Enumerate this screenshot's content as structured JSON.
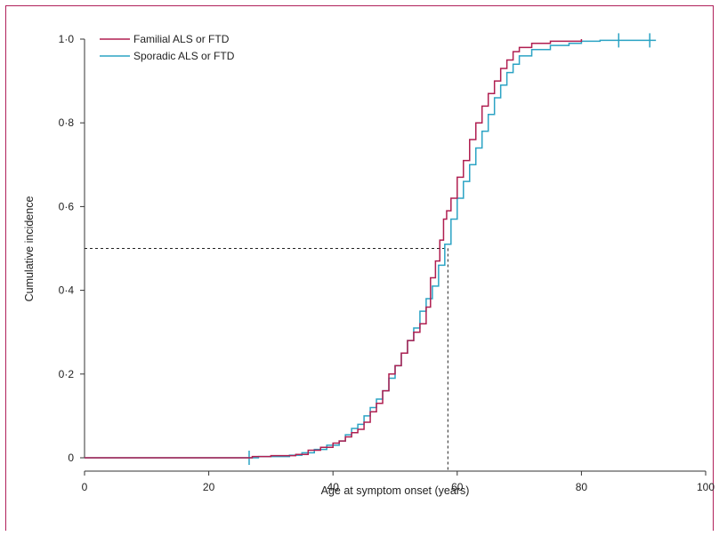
{
  "chart_data": {
    "type": "line",
    "xlabel": "Age at symptom onset (years)",
    "ylabel": "Cumulative incidence",
    "xlim": [
      0,
      100
    ],
    "ylim": [
      0,
      1.0
    ],
    "x_ticks": [
      0,
      20,
      40,
      60,
      80,
      100
    ],
    "x_tick_labels": [
      "0",
      "20",
      "40",
      "60",
      "80",
      "100"
    ],
    "y_ticks": [
      0,
      0.2,
      0.4,
      0.6,
      0.8,
      1.0
    ],
    "y_tick_labels": [
      "0",
      "0·2",
      "0·4",
      "0·6",
      "0·8",
      "1·0"
    ],
    "legend_position": "top-left",
    "grid": false,
    "reference_lines": {
      "median_age": 58.5,
      "median_incidence": 0.5
    },
    "series": [
      {
        "name": "Familial ALS or FTD",
        "color": "#b01e50",
        "points": [
          [
            0,
            0
          ],
          [
            27,
            0.003
          ],
          [
            30,
            0.005
          ],
          [
            34,
            0.008
          ],
          [
            36,
            0.018
          ],
          [
            38,
            0.025
          ],
          [
            40,
            0.035
          ],
          [
            41,
            0.04
          ],
          [
            42,
            0.05
          ],
          [
            43,
            0.06
          ],
          [
            44,
            0.068
          ],
          [
            45,
            0.085
          ],
          [
            46,
            0.11
          ],
          [
            47,
            0.13
          ],
          [
            48,
            0.16
          ],
          [
            49,
            0.2
          ],
          [
            50,
            0.22
          ],
          [
            51,
            0.25
          ],
          [
            52,
            0.28
          ],
          [
            53,
            0.3
          ],
          [
            54,
            0.32
          ],
          [
            55,
            0.36
          ],
          [
            55.7,
            0.43
          ],
          [
            56.5,
            0.47
          ],
          [
            57.2,
            0.52
          ],
          [
            57.8,
            0.57
          ],
          [
            58.3,
            0.59
          ],
          [
            59,
            0.62
          ],
          [
            60,
            0.67
          ],
          [
            61,
            0.71
          ],
          [
            62,
            0.76
          ],
          [
            63,
            0.8
          ],
          [
            64,
            0.84
          ],
          [
            65,
            0.87
          ],
          [
            66,
            0.9
          ],
          [
            67,
            0.93
          ],
          [
            68,
            0.95
          ],
          [
            69,
            0.97
          ],
          [
            70,
            0.98
          ],
          [
            72,
            0.99
          ],
          [
            75,
            0.995
          ],
          [
            80,
            1.0
          ]
        ],
        "censor_ages": []
      },
      {
        "name": "Sporadic ALS or FTD",
        "color": "#2ba3c4",
        "points": [
          [
            0,
            0
          ],
          [
            28,
            0.003
          ],
          [
            33,
            0.006
          ],
          [
            35,
            0.012
          ],
          [
            37,
            0.02
          ],
          [
            39,
            0.03
          ],
          [
            41,
            0.04
          ],
          [
            42,
            0.055
          ],
          [
            43,
            0.07
          ],
          [
            44,
            0.08
          ],
          [
            45,
            0.1
          ],
          [
            46,
            0.12
          ],
          [
            47,
            0.14
          ],
          [
            48,
            0.16
          ],
          [
            49,
            0.19
          ],
          [
            50,
            0.22
          ],
          [
            51,
            0.25
          ],
          [
            52,
            0.28
          ],
          [
            53,
            0.31
          ],
          [
            54,
            0.35
          ],
          [
            55,
            0.38
          ],
          [
            56,
            0.41
          ],
          [
            57,
            0.46
          ],
          [
            58,
            0.51
          ],
          [
            59,
            0.57
          ],
          [
            60,
            0.62
          ],
          [
            61,
            0.66
          ],
          [
            62,
            0.7
          ],
          [
            63,
            0.74
          ],
          [
            64,
            0.78
          ],
          [
            65,
            0.82
          ],
          [
            66,
            0.86
          ],
          [
            67,
            0.89
          ],
          [
            68,
            0.92
          ],
          [
            69,
            0.94
          ],
          [
            70,
            0.96
          ],
          [
            72,
            0.975
          ],
          [
            75,
            0.985
          ],
          [
            78,
            0.99
          ],
          [
            80,
            0.995
          ],
          [
            83,
            0.997
          ],
          [
            92,
            0.997
          ]
        ],
        "censor_ages": [
          26.5,
          86,
          91
        ]
      }
    ]
  }
}
